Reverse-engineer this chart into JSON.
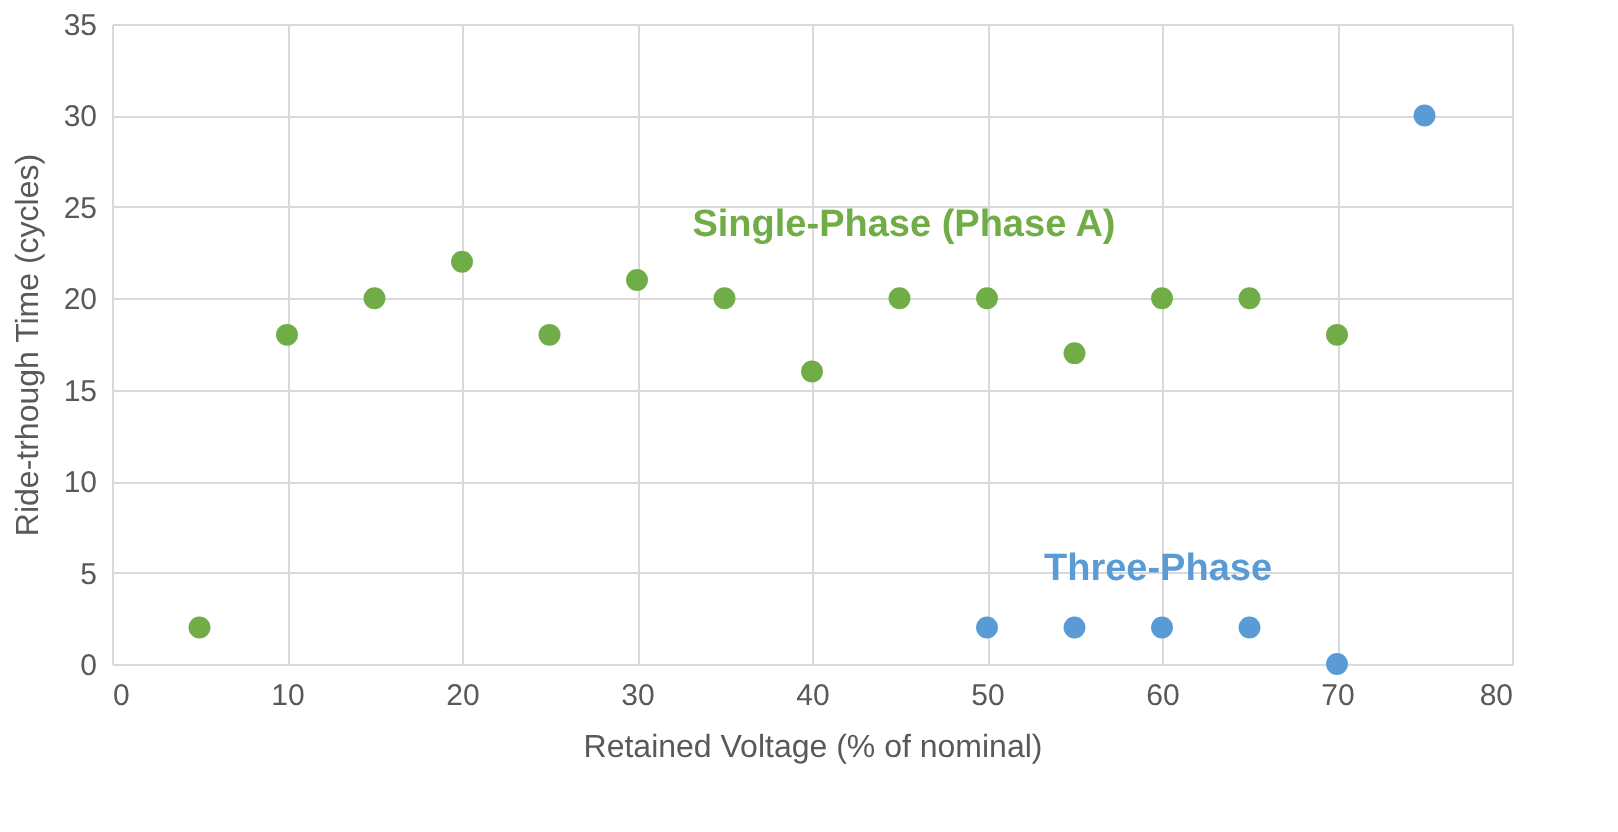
{
  "chart_data": {
    "type": "scatter",
    "xlabel": "Retained Voltage (% of nominal)",
    "ylabel": "Ride-trhough Time (cycles)",
    "xlim": [
      0,
      80
    ],
    "xticks": [
      0,
      10,
      20,
      30,
      40,
      50,
      60,
      70,
      80
    ],
    "ylim": [
      0,
      35
    ],
    "yticks": [
      0,
      5,
      10,
      15,
      20,
      25,
      30,
      35
    ],
    "grid": true,
    "marker": "circle",
    "legend": false,
    "series": [
      {
        "name": "Single-Phase (Phase A)",
        "color": "#70ad47",
        "x": [
          5,
          10,
          15,
          20,
          25,
          30,
          35,
          40,
          45,
          50,
          55,
          60,
          65,
          70
        ],
        "values": [
          2,
          18,
          20,
          22,
          18,
          21,
          20,
          16,
          20,
          20,
          17,
          20,
          20,
          18
        ]
      },
      {
        "name": "Three-Phase",
        "color": "#5b9bd5",
        "x": [
          50,
          55,
          60,
          65,
          70,
          75
        ],
        "values": [
          2,
          2,
          2,
          2,
          0,
          30
        ]
      }
    ]
  }
}
